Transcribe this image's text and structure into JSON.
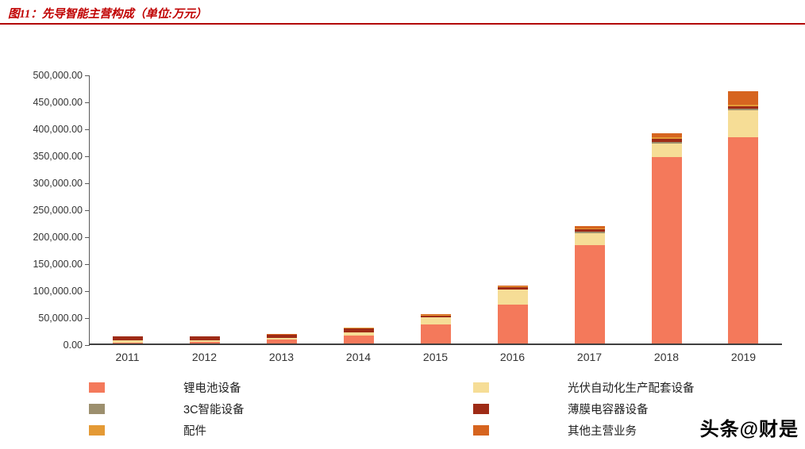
{
  "header": {
    "title": "图11：先导智能主营构成（单位:万元）"
  },
  "chart_data": {
    "type": "bar",
    "stacked": true,
    "title": "先导智能主营构成",
    "unit": "万元",
    "categories": [
      "2011",
      "2012",
      "2013",
      "2014",
      "2015",
      "2016",
      "2017",
      "2018",
      "2019"
    ],
    "series": [
      {
        "name": "锂电池设备",
        "color": "#f4795b",
        "values": [
          2000,
          3000,
          8000,
          15000,
          35000,
          72000,
          182000,
          345000,
          382000
        ]
      },
      {
        "name": "光伏自动化生产配套设备",
        "color": "#f6dd96",
        "values": [
          4000,
          3000,
          3000,
          6000,
          13000,
          28000,
          22000,
          25000,
          50000
        ]
      },
      {
        "name": "3C智能设备",
        "color": "#9c8f6e",
        "values": [
          0,
          0,
          0,
          0,
          0,
          0,
          3000,
          3000,
          4000
        ]
      },
      {
        "name": "薄膜电容器设备",
        "color": "#9e2b16",
        "values": [
          7000,
          7000,
          5000,
          7000,
          4000,
          4000,
          5000,
          6000,
          4000
        ]
      },
      {
        "name": "配件",
        "color": "#e49a35",
        "values": [
          500,
          500,
          500,
          1000,
          1000,
          1500,
          2000,
          3000,
          3000
        ]
      },
      {
        "name": "其他主营业务",
        "color": "#d6641f",
        "values": [
          500,
          500,
          500,
          1000,
          1000,
          2000,
          4000,
          8000,
          25000
        ]
      }
    ],
    "ylim": [
      0,
      500000
    ],
    "ytick_step": 50000,
    "yticks": [
      "500,000.00",
      "450,000.00",
      "400,000.00",
      "350,000.00",
      "300,000.00",
      "250,000.00",
      "200,000.00",
      "150,000.00",
      "100,000.00",
      "50,000.00",
      "0.00"
    ],
    "xlabel": "",
    "ylabel": "",
    "grid": false,
    "legend_position": "bottom"
  },
  "watermark": "头条@财是"
}
